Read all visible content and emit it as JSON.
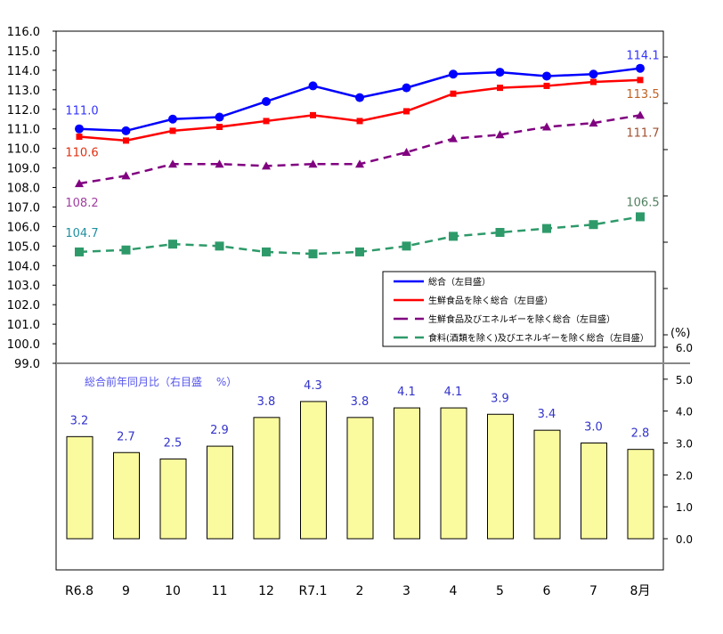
{
  "chart_data": {
    "type": "line+bar",
    "categories": [
      "R6.8",
      "9",
      "10",
      "11",
      "12",
      "R7.1",
      "2",
      "3",
      "4",
      "5",
      "6",
      "7",
      "8月"
    ],
    "left_axis": {
      "range": [
        99.0,
        116.0
      ],
      "ticks": [
        "116.0",
        "115.0",
        "114.0",
        "113.0",
        "112.0",
        "111.0",
        "110.0",
        "109.0",
        "108.0",
        "107.0",
        "106.0",
        "105.0",
        "104.0",
        "103.0",
        "102.0",
        "101.0",
        "100.0",
        "99.0"
      ]
    },
    "right_axis": {
      "unit_label": "(%)",
      "range": [
        0.0,
        6.0
      ],
      "ticks": [
        "6.0",
        "5.0",
        "4.0",
        "3.0",
        "2.0",
        "1.0",
        "0.0"
      ]
    },
    "series": [
      {
        "name": "総合（左目盛）",
        "color": "#0000ff",
        "marker": "circle",
        "dash": "solid",
        "values": [
          111.0,
          110.9,
          111.5,
          111.6,
          112.4,
          113.2,
          112.6,
          113.1,
          113.8,
          113.9,
          113.7,
          113.8,
          114.1
        ],
        "first_label": "111.0",
        "last_label": "114.1",
        "label_color": "#3333ff"
      },
      {
        "name": "生鮮食品を除く総合（左目盛）",
        "color": "#ff0000",
        "marker": "square",
        "dash": "solid",
        "values": [
          110.6,
          110.4,
          110.9,
          111.1,
          111.4,
          111.7,
          111.4,
          111.9,
          112.8,
          113.1,
          113.2,
          113.4,
          113.5
        ],
        "first_label": "110.6",
        "last_label": "113.5",
        "label_color": "#e03010",
        "last_label_color": "#c06020"
      },
      {
        "name": "生鮮食品及びエネルギーを除く総合（左目盛）",
        "color": "#800080",
        "marker": "triangle",
        "dash": "dashed",
        "values": [
          108.2,
          108.6,
          109.2,
          109.2,
          109.1,
          109.2,
          109.2,
          109.8,
          110.5,
          110.7,
          111.1,
          111.3,
          111.7
        ],
        "first_label": "108.2",
        "last_label": "111.7",
        "label_color": "#a040a0",
        "last_label_color": "#a05030"
      },
      {
        "name": "食料(酒類を除く)及びエネルギーを除く総合（左目盛）",
        "color": "#2e9a6a",
        "marker": "square",
        "dash": "dashed",
        "values": [
          104.7,
          104.8,
          105.1,
          105.0,
          104.7,
          104.6,
          104.7,
          105.0,
          105.5,
          105.7,
          105.9,
          106.1,
          106.5
        ],
        "first_label": "104.7",
        "last_label": "106.5",
        "label_color": "#2090a0",
        "last_label_color": "#508060"
      }
    ],
    "bars": {
      "name": "総合前年同月比（右目盛　 %）",
      "color": "#fafa9e",
      "border": "#000000",
      "values": [
        3.2,
        2.7,
        2.5,
        2.9,
        3.8,
        4.3,
        3.8,
        4.1,
        4.1,
        3.9,
        3.4,
        3.0,
        2.8
      ],
      "labels": [
        "3.2",
        "2.7",
        "2.5",
        "2.9",
        "3.8",
        "4.3",
        "3.8",
        "4.1",
        "4.1",
        "3.9",
        "3.4",
        "3.0",
        "2.8"
      ],
      "label_color": "#3333cc"
    }
  }
}
